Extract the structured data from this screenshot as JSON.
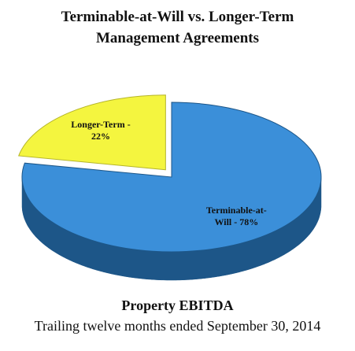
{
  "chart_data": {
    "type": "pie3d",
    "title": "Terminable-at-Will vs. Longer-Term Management Agreements",
    "subtitle": "Property EBITDA",
    "footnote": "Trailing twelve months ended September 30, 2014",
    "values": [
      78,
      22
    ],
    "value_labels": [
      "Terminable-at-Will -  78%",
      "Longer-Term - 22%"
    ],
    "colors": [
      "#3b8fd9",
      "#f4f53f"
    ],
    "side_colors": [
      "#1d5688",
      "#b5b52a"
    ],
    "exploded": [
      false,
      true
    ]
  }
}
